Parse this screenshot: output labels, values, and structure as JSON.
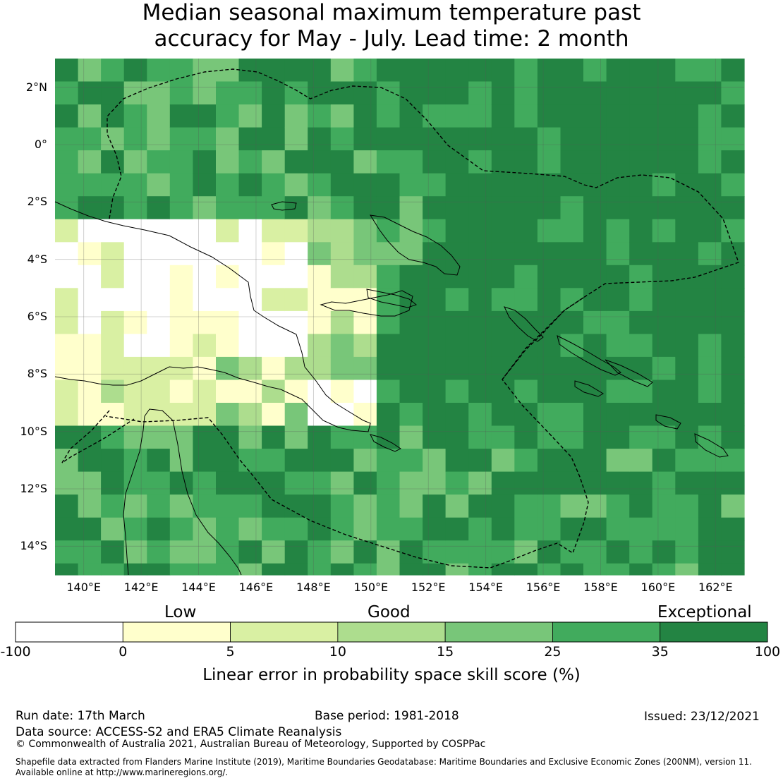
{
  "title": {
    "line1": "Median seasonal maximum temperature past",
    "line2": "accuracy for May - July. Lead time: 2 month"
  },
  "map": {
    "lat_labels": [
      "2°N",
      "0°",
      "2°S",
      "4°S",
      "6°S",
      "8°S",
      "10°S",
      "12°S",
      "14°S"
    ],
    "lon_labels": [
      "140°E",
      "142°E",
      "144°E",
      "146°E",
      "148°E",
      "150°E",
      "152°E",
      "154°E",
      "156°E",
      "158°E",
      "160°E",
      "162°E"
    ],
    "lat_range": [
      -15,
      3
    ],
    "lon_range": [
      139,
      163
    ],
    "grid_resolution_deg": 0.8,
    "color_classes": [
      "#ffffff",
      "#ffffcc",
      "#d9f0a3",
      "#addd8e",
      "#78c679",
      "#41ab5d",
      "#238443"
    ]
  },
  "colorbar": {
    "category_low": "Low",
    "category_good": "Good",
    "category_exceptional": "Exceptional",
    "ticks": [
      "-100",
      "0",
      "5",
      "10",
      "15",
      "25",
      "35",
      "100"
    ],
    "colors": [
      "#ffffff",
      "#ffffcc",
      "#d9f0a3",
      "#addd8e",
      "#78c679",
      "#41ab5d",
      "#238443"
    ],
    "label": "Linear error in probability space skill score (%)"
  },
  "footer": {
    "run_date": "Run date: 17th March",
    "base_period": "Base period: 1981-2018",
    "issued": "Issued: 23/12/2021",
    "data_source": "Data source: ACCESS-S2 and ERA5 Climate Reanalysis",
    "copyright": "© Commonwealth of Australia 2021, Australian Bureau of Meteorology, Supported by COSPPac",
    "shapefile_line1": "Shapefile data extracted from Flanders Marine Institute (2019), Maritime Boundaries Geodatabase: Maritime Boundaries and Exclusive Economic Zones (200NM), version 11.",
    "shapefile_line2": "Available online at http://www.marineregions.org/."
  }
}
